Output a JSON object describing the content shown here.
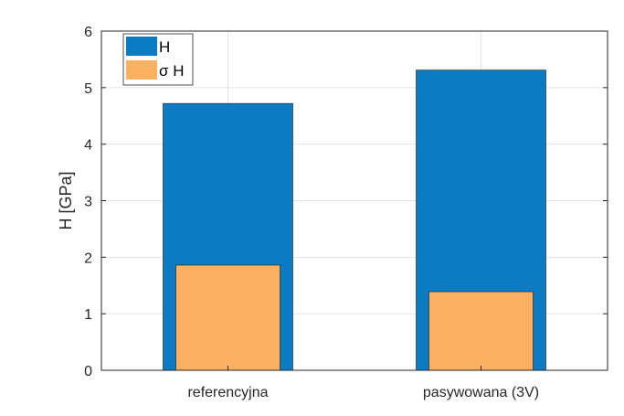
{
  "chart_data": {
    "type": "bar",
    "categories": [
      "referencyjna",
      "pasywowana (3V)"
    ],
    "series": [
      {
        "name": "H",
        "values": [
          4.72,
          5.31
        ],
        "color": "#0b7bc4"
      },
      {
        "name": "σ H",
        "values": [
          1.86,
          1.39
        ],
        "color": "#fbb062"
      }
    ],
    "ylabel": "H [GPa]",
    "xlabel": "",
    "ylim": [
      0,
      6
    ],
    "yticks": [
      0,
      1,
      2,
      3,
      4,
      5,
      6
    ],
    "grid": true,
    "legend_position": "top-left",
    "bar_style": "overlaid"
  }
}
